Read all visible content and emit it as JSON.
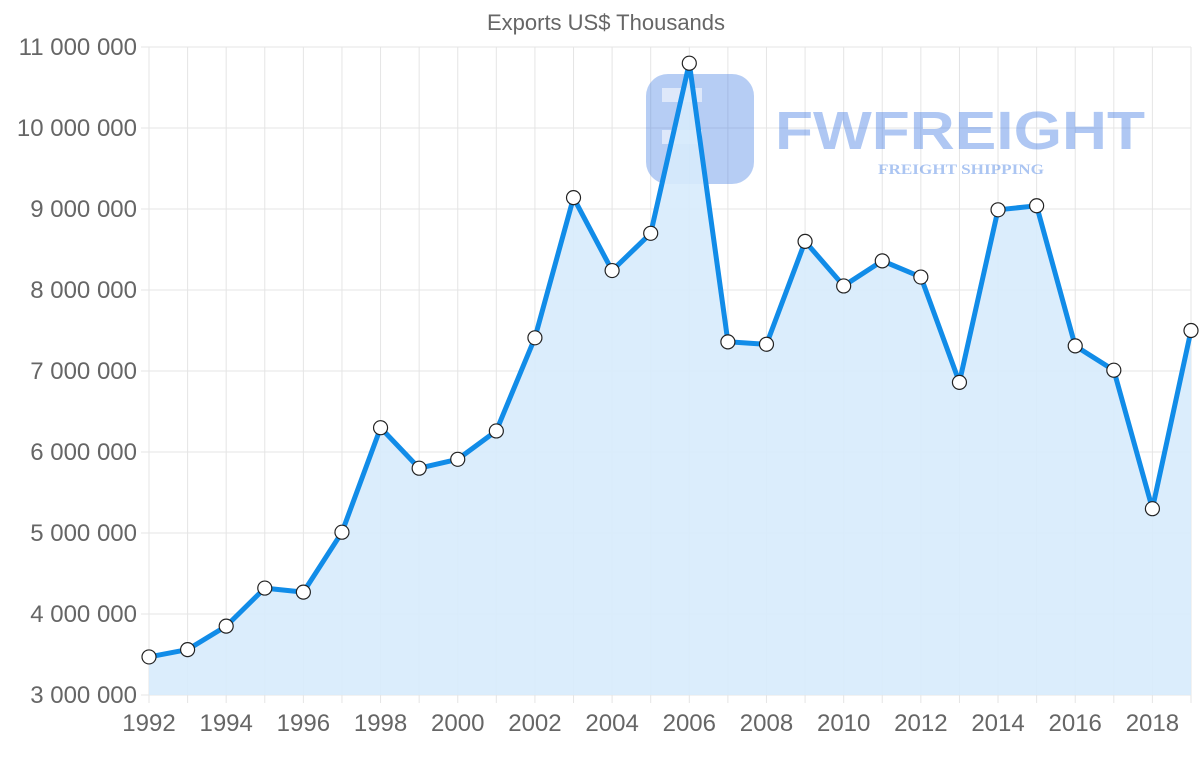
{
  "chart_data": {
    "type": "line",
    "title": "Exports US$ Thousands",
    "xlabel": "",
    "ylabel": "",
    "ylim": [
      3000000,
      11000000
    ],
    "grid": true,
    "legend": "none",
    "fill": true,
    "y_ticks": [
      "3 000 000",
      "4 000 000",
      "5 000 000",
      "6 000 000",
      "7 000 000",
      "8 000 000",
      "9 000 000",
      "10 000 000",
      "11 000 000"
    ],
    "y_tick_values": [
      3000000,
      4000000,
      5000000,
      6000000,
      7000000,
      8000000,
      9000000,
      10000000,
      11000000
    ],
    "x_ticks": [
      "1992",
      "1994",
      "1996",
      "1998",
      "2000",
      "2002",
      "2004",
      "2006",
      "2008",
      "2010",
      "2012",
      "2014",
      "2016",
      "2018"
    ],
    "x": [
      1992,
      1993,
      1994,
      1995,
      1996,
      1997,
      1998,
      1999,
      2000,
      2001,
      2002,
      2003,
      2004,
      2005,
      2006,
      2007,
      2008,
      2009,
      2010,
      2011,
      2012,
      2013,
      2014,
      2015,
      2016,
      2017,
      2018,
      2019
    ],
    "series": [
      {
        "name": "Exports US$ Thousands",
        "color": "#118ce8",
        "fill_color": "#d7ebfc",
        "values": [
          3470000,
          3560000,
          3850000,
          4320000,
          4270000,
          5010000,
          6300000,
          5800000,
          5910000,
          6260000,
          7410000,
          9140000,
          8240000,
          8700000,
          10800000,
          7360000,
          7330000,
          8600000,
          8050000,
          8360000,
          8160000,
          6860000,
          8990000,
          9040000,
          7310000,
          7010000,
          5300000,
          7500000
        ]
      }
    ]
  },
  "watermark": {
    "brand": "FWFREIGHT",
    "tagline": "FREIGHT SHIPPING",
    "color": "#2f6fe0"
  }
}
